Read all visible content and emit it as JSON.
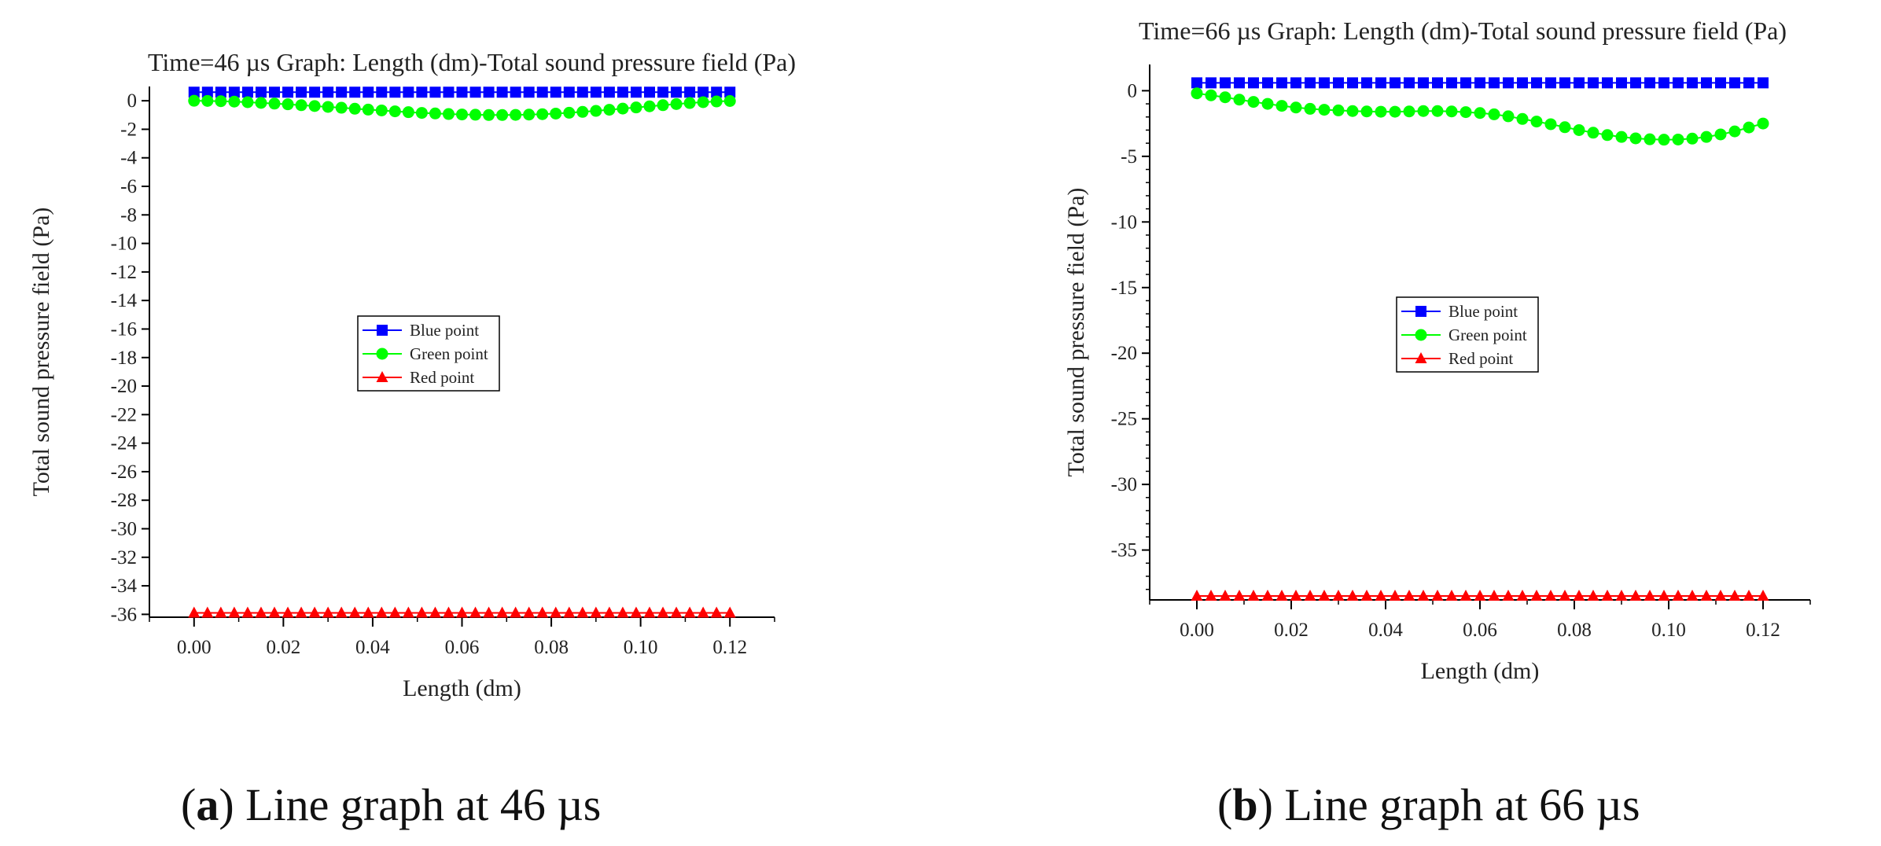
{
  "colors": {
    "blue": "#0000ff",
    "green": "#00ff00",
    "red": "#ff0000",
    "axis": "#000000"
  },
  "captions": [
    {
      "letter": "a",
      "text": ") Line graph at 46 µs",
      "open": "("
    },
    {
      "letter": "b",
      "text": ") Line graph at 66 µs",
      "open": "("
    }
  ],
  "chart_data": [
    {
      "type": "line",
      "title": "Time=46 µs Graph: Length (dm)-Total sound pressure field (Pa)",
      "xlabel": "Length (dm)",
      "ylabel": "Total sound pressure field (Pa)",
      "xlim": [
        -0.01,
        0.13
      ],
      "ylim": [
        -36.2,
        1.0
      ],
      "xticks": [
        "0.00",
        "0.02",
        "0.04",
        "0.06",
        "0.08",
        "0.10",
        "0.12"
      ],
      "xtick_values": [
        0,
        0.02,
        0.04,
        0.06,
        0.08,
        0.1,
        0.12
      ],
      "yticks": [
        "0",
        "-2",
        "-4",
        "-6",
        "-8",
        "-10",
        "-12",
        "-14",
        "-16",
        "-18",
        "-20",
        "-22",
        "-24",
        "-26",
        "-28",
        "-30",
        "-32",
        "-34",
        "-36"
      ],
      "ytick_values": [
        0,
        -2,
        -4,
        -6,
        -8,
        -10,
        -12,
        -14,
        -16,
        -18,
        -20,
        -22,
        -24,
        -26,
        -28,
        -30,
        -32,
        -34,
        -36
      ],
      "legend": [
        "Blue point",
        "Green point",
        "Red point"
      ],
      "series": [
        {
          "name": "Blue point",
          "color": "#0000ff",
          "marker": "square",
          "x": [
            0,
            0.003,
            0.006,
            0.009,
            0.012,
            0.015,
            0.018,
            0.021,
            0.024,
            0.027,
            0.03,
            0.033,
            0.036,
            0.039,
            0.042,
            0.045,
            0.048,
            0.051,
            0.054,
            0.057,
            0.06,
            0.063,
            0.066,
            0.069,
            0.072,
            0.075,
            0.078,
            0.081,
            0.084,
            0.087,
            0.09,
            0.093,
            0.096,
            0.099,
            0.102,
            0.105,
            0.108,
            0.111,
            0.114,
            0.117,
            0.12
          ],
          "y": [
            0.6,
            0.6,
            0.6,
            0.6,
            0.6,
            0.6,
            0.6,
            0.6,
            0.6,
            0.6,
            0.6,
            0.6,
            0.6,
            0.6,
            0.6,
            0.6,
            0.6,
            0.6,
            0.6,
            0.6,
            0.6,
            0.6,
            0.6,
            0.6,
            0.6,
            0.6,
            0.6,
            0.6,
            0.6,
            0.6,
            0.6,
            0.6,
            0.6,
            0.6,
            0.6,
            0.6,
            0.6,
            0.6,
            0.6,
            0.6,
            0.6
          ]
        },
        {
          "name": "Green point",
          "color": "#00ff00",
          "marker": "circle",
          "x": [
            0,
            0.003,
            0.006,
            0.009,
            0.012,
            0.015,
            0.018,
            0.021,
            0.024,
            0.027,
            0.03,
            0.033,
            0.036,
            0.039,
            0.042,
            0.045,
            0.048,
            0.051,
            0.054,
            0.057,
            0.06,
            0.063,
            0.066,
            0.069,
            0.072,
            0.075,
            0.078,
            0.081,
            0.084,
            0.087,
            0.09,
            0.093,
            0.096,
            0.099,
            0.102,
            0.105,
            0.108,
            0.111,
            0.114,
            0.117,
            0.12
          ],
          "y": [
            0,
            -0.01,
            -0.03,
            -0.06,
            -0.1,
            -0.15,
            -0.2,
            -0.25,
            -0.31,
            -0.37,
            -0.43,
            -0.49,
            -0.56,
            -0.62,
            -0.68,
            -0.74,
            -0.8,
            -0.85,
            -0.89,
            -0.93,
            -0.96,
            -0.98,
            -1.0,
            -1.0,
            -0.99,
            -0.97,
            -0.94,
            -0.9,
            -0.84,
            -0.78,
            -0.71,
            -0.63,
            -0.55,
            -0.47,
            -0.39,
            -0.31,
            -0.23,
            -0.16,
            -0.1,
            -0.05,
            -0.02
          ]
        },
        {
          "name": "Red point",
          "color": "#ff0000",
          "marker": "triangle",
          "x": [
            0,
            0.003,
            0.006,
            0.009,
            0.012,
            0.015,
            0.018,
            0.021,
            0.024,
            0.027,
            0.03,
            0.033,
            0.036,
            0.039,
            0.042,
            0.045,
            0.048,
            0.051,
            0.054,
            0.057,
            0.06,
            0.063,
            0.066,
            0.069,
            0.072,
            0.075,
            0.078,
            0.081,
            0.084,
            0.087,
            0.09,
            0.093,
            0.096,
            0.099,
            0.102,
            0.105,
            0.108,
            0.111,
            0.114,
            0.117,
            0.12
          ],
          "y": [
            -35.9,
            -35.9,
            -35.9,
            -35.9,
            -35.9,
            -35.9,
            -35.9,
            -35.9,
            -35.9,
            -35.9,
            -35.9,
            -35.9,
            -35.9,
            -35.9,
            -35.9,
            -35.9,
            -35.9,
            -35.9,
            -35.9,
            -35.9,
            -35.9,
            -35.9,
            -35.9,
            -35.9,
            -35.9,
            -35.9,
            -35.9,
            -35.9,
            -35.9,
            -35.9,
            -35.9,
            -35.9,
            -35.9,
            -35.9,
            -35.9,
            -35.9,
            -35.9,
            -35.9,
            -35.9,
            -35.9,
            -35.9
          ]
        }
      ]
    },
    {
      "type": "line",
      "title": "Time=66 µs Graph: Length (dm)-Total sound pressure field (Pa)",
      "xlabel": "Length (dm)",
      "ylabel": "Total sound pressure field (Pa)",
      "xlim": [
        -0.01,
        0.13
      ],
      "ylim": [
        -38.8,
        2.0
      ],
      "xticks": [
        "0.00",
        "0.02",
        "0.04",
        "0.06",
        "0.08",
        "0.10",
        "0.12"
      ],
      "xtick_values": [
        0,
        0.02,
        0.04,
        0.06,
        0.08,
        0.1,
        0.12
      ],
      "yticks": [
        "0",
        "-5",
        "-10",
        "-15",
        "-20",
        "-25",
        "-30",
        "-35"
      ],
      "ytick_values": [
        0,
        -5,
        -10,
        -15,
        -20,
        -25,
        -30,
        -35
      ],
      "legend": [
        "Blue point",
        "Green point",
        "Red point"
      ],
      "series": [
        {
          "name": "Blue point",
          "color": "#0000ff",
          "marker": "square",
          "x": [
            0,
            0.003,
            0.006,
            0.009,
            0.012,
            0.015,
            0.018,
            0.021,
            0.024,
            0.027,
            0.03,
            0.033,
            0.036,
            0.039,
            0.042,
            0.045,
            0.048,
            0.051,
            0.054,
            0.057,
            0.06,
            0.063,
            0.066,
            0.069,
            0.072,
            0.075,
            0.078,
            0.081,
            0.084,
            0.087,
            0.09,
            0.093,
            0.096,
            0.099,
            0.102,
            0.105,
            0.108,
            0.111,
            0.114,
            0.117,
            0.12
          ],
          "y": [
            0.6,
            0.6,
            0.6,
            0.6,
            0.6,
            0.6,
            0.6,
            0.6,
            0.6,
            0.6,
            0.6,
            0.6,
            0.6,
            0.6,
            0.6,
            0.6,
            0.6,
            0.6,
            0.6,
            0.6,
            0.6,
            0.6,
            0.6,
            0.6,
            0.6,
            0.6,
            0.6,
            0.6,
            0.6,
            0.6,
            0.6,
            0.6,
            0.6,
            0.6,
            0.6,
            0.6,
            0.6,
            0.6,
            0.6,
            0.6,
            0.6
          ]
        },
        {
          "name": "Green point",
          "color": "#00ff00",
          "marker": "circle",
          "x": [
            0,
            0.003,
            0.006,
            0.009,
            0.012,
            0.015,
            0.018,
            0.021,
            0.024,
            0.027,
            0.03,
            0.033,
            0.036,
            0.039,
            0.042,
            0.045,
            0.048,
            0.051,
            0.054,
            0.057,
            0.06,
            0.063,
            0.066,
            0.069,
            0.072,
            0.075,
            0.078,
            0.081,
            0.084,
            0.087,
            0.09,
            0.093,
            0.096,
            0.099,
            0.102,
            0.105,
            0.108,
            0.111,
            0.114,
            0.117,
            0.12
          ],
          "y": [
            -0.2,
            -0.35,
            -0.5,
            -0.68,
            -0.85,
            -1.0,
            -1.15,
            -1.28,
            -1.38,
            -1.45,
            -1.5,
            -1.55,
            -1.58,
            -1.6,
            -1.6,
            -1.58,
            -1.55,
            -1.55,
            -1.58,
            -1.63,
            -1.7,
            -1.8,
            -1.95,
            -2.15,
            -2.35,
            -2.55,
            -2.78,
            -3.0,
            -3.2,
            -3.38,
            -3.52,
            -3.63,
            -3.7,
            -3.73,
            -3.72,
            -3.65,
            -3.52,
            -3.33,
            -3.1,
            -2.8,
            -2.5
          ]
        },
        {
          "name": "Red point",
          "color": "#ff0000",
          "marker": "triangle",
          "x": [
            0,
            0.003,
            0.006,
            0.009,
            0.012,
            0.015,
            0.018,
            0.021,
            0.024,
            0.027,
            0.03,
            0.033,
            0.036,
            0.039,
            0.042,
            0.045,
            0.048,
            0.051,
            0.054,
            0.057,
            0.06,
            0.063,
            0.066,
            0.069,
            0.072,
            0.075,
            0.078,
            0.081,
            0.084,
            0.087,
            0.09,
            0.093,
            0.096,
            0.099,
            0.102,
            0.105,
            0.108,
            0.111,
            0.114,
            0.117,
            0.12
          ],
          "y": [
            -38.5,
            -38.5,
            -38.5,
            -38.5,
            -38.5,
            -38.5,
            -38.5,
            -38.5,
            -38.5,
            -38.5,
            -38.5,
            -38.5,
            -38.5,
            -38.5,
            -38.5,
            -38.5,
            -38.5,
            -38.5,
            -38.5,
            -38.5,
            -38.5,
            -38.5,
            -38.5,
            -38.5,
            -38.5,
            -38.5,
            -38.5,
            -38.5,
            -38.5,
            -38.5,
            -38.5,
            -38.5,
            -38.5,
            -38.5,
            -38.5,
            -38.5,
            -38.5,
            -38.5,
            -38.5,
            -38.5,
            -38.5
          ]
        }
      ]
    }
  ]
}
